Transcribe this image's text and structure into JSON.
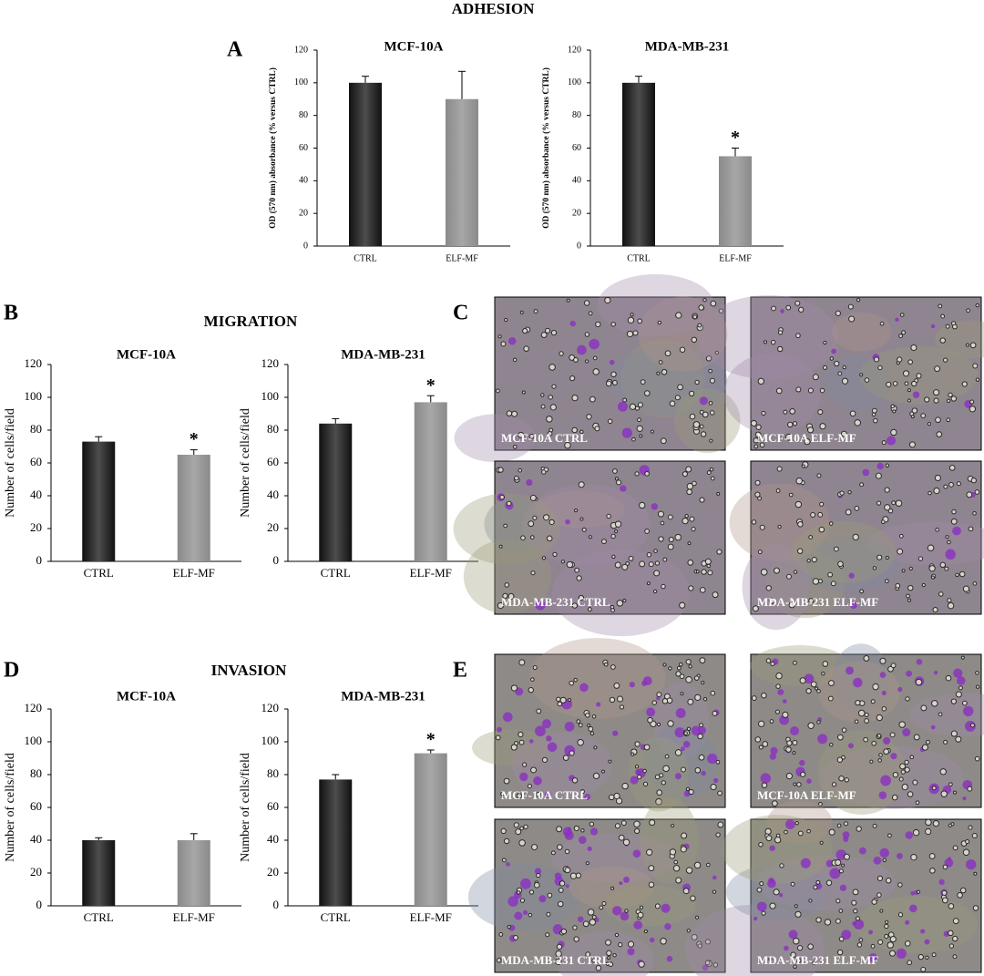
{
  "figure": {
    "sections": {
      "adhesion": "ADHESION",
      "migration": "MIGRATION",
      "invasion": "INVASION"
    },
    "panel_labels": [
      "A",
      "B",
      "C",
      "D",
      "E"
    ],
    "micrographs": {
      "C": [
        "MCF-10A CTRL",
        "MCF-10A ELF-MF",
        "MDA-MB-231 CTRL",
        "MDA-MB-231 ELF-MF"
      ],
      "E": [
        "MCF-10A CTRL",
        "MCF-10A ELF-MF",
        "MDA-MB-231 CTRL",
        "MDA-MB-231 ELF-MF"
      ]
    }
  },
  "chart_data": [
    {
      "type": "bar",
      "title": "MCF-10A",
      "ylabel": "OD (570 nm) absorbance (% versus CTRL)",
      "categories": [
        "CTRL",
        "ELF-MF"
      ],
      "values": [
        100,
        90
      ],
      "errors": [
        4,
        17
      ],
      "significance": [
        null,
        null
      ],
      "colors": [
        "#111111",
        "#8a8a8a"
      ],
      "ylim": [
        0,
        120
      ],
      "yticks": [
        0,
        20,
        40,
        60,
        80,
        100,
        120
      ]
    },
    {
      "type": "bar",
      "title": "MDA-MB-231",
      "ylabel": "OD (570 nm) absorbance (% versus CTRL)",
      "categories": [
        "CTRL",
        "ELF-MF"
      ],
      "values": [
        100,
        55
      ],
      "errors": [
        4,
        5
      ],
      "significance": [
        null,
        "*"
      ],
      "colors": [
        "#111111",
        "#8a8a8a"
      ],
      "ylim": [
        0,
        120
      ],
      "yticks": [
        0,
        20,
        40,
        60,
        80,
        100,
        120
      ]
    },
    {
      "type": "bar",
      "title": "MCF-10A",
      "ylabel": "Number of cells/field",
      "categories": [
        "CTRL",
        "ELF-MF"
      ],
      "values": [
        73,
        65
      ],
      "errors": [
        3,
        3
      ],
      "significance": [
        null,
        "*"
      ],
      "colors": [
        "#111111",
        "#8a8a8a"
      ],
      "ylim": [
        0,
        120
      ],
      "yticks": [
        0,
        20,
        40,
        60,
        80,
        100,
        120
      ]
    },
    {
      "type": "bar",
      "title": "MDA-MB-231",
      "ylabel": "Number of cells/field",
      "categories": [
        "CTRL",
        "ELF-MF"
      ],
      "values": [
        84,
        97
      ],
      "errors": [
        3,
        4
      ],
      "significance": [
        null,
        "*"
      ],
      "colors": [
        "#111111",
        "#8a8a8a"
      ],
      "ylim": [
        0,
        120
      ],
      "yticks": [
        0,
        20,
        40,
        60,
        80,
        100,
        120
      ]
    },
    {
      "type": "bar",
      "title": "MCF-10A",
      "ylabel": "Number of cells/field",
      "categories": [
        "CTRL",
        "ELF-MF"
      ],
      "values": [
        40,
        40
      ],
      "errors": [
        1.5,
        4
      ],
      "significance": [
        null,
        null
      ],
      "colors": [
        "#111111",
        "#8a8a8a"
      ],
      "ylim": [
        0,
        120
      ],
      "yticks": [
        0,
        20,
        40,
        60,
        80,
        100,
        120
      ]
    },
    {
      "type": "bar",
      "title": "MDA-MB-231",
      "ylabel": "Number of cells/field",
      "categories": [
        "CTRL",
        "ELF-MF"
      ],
      "values": [
        77,
        93
      ],
      "errors": [
        3,
        2
      ],
      "significance": [
        null,
        "*"
      ],
      "colors": [
        "#111111",
        "#8a8a8a"
      ],
      "ylim": [
        0,
        120
      ],
      "yticks": [
        0,
        20,
        40,
        60,
        80,
        100,
        120
      ]
    }
  ]
}
